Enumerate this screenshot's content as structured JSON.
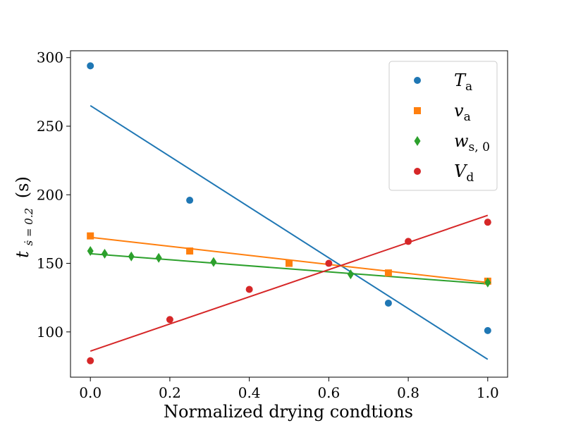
{
  "chart_data": {
    "type": "scatter",
    "title": "",
    "xlabel": "Normalized drying condtions",
    "ylabel": {
      "main": "t",
      "subscript": "ṡ = 0.2",
      "unit": "(s)"
    },
    "xlim": [
      -0.05,
      1.05
    ],
    "ylim": [
      67,
      305
    ],
    "xticks": [
      0.0,
      0.2,
      0.4,
      0.6,
      0.8,
      1.0
    ],
    "xtick_labels": [
      "0.0",
      "0.2",
      "0.4",
      "0.6",
      "0.8",
      "1.0"
    ],
    "yticks": [
      100,
      150,
      200,
      250,
      300
    ],
    "ytick_labels": [
      "100",
      "150",
      "200",
      "250",
      "300"
    ],
    "grid": false,
    "legend_position": "top-right",
    "series": [
      {
        "name": "T",
        "name_sub": "a",
        "color": "#1f77b4",
        "marker": "circle",
        "x": [
          0.0,
          0.25,
          0.75,
          1.0
        ],
        "y": [
          294,
          196,
          121,
          101
        ],
        "fit": {
          "x": [
            0.0,
            1.0
          ],
          "y": [
            265,
            80
          ]
        }
      },
      {
        "name": "v",
        "name_sub": "a",
        "color": "#ff7f0e",
        "marker": "square",
        "x": [
          0.0,
          0.25,
          0.5,
          0.75,
          1.0
        ],
        "y": [
          170,
          159,
          150,
          143,
          137
        ],
        "fit": {
          "x": [
            0.0,
            1.0
          ],
          "y": [
            169,
            136
          ]
        }
      },
      {
        "name": "w",
        "name_sub": "s, 0",
        "color": "#2ca02c",
        "marker": "diamond",
        "x": [
          0.0,
          0.036,
          0.103,
          0.172,
          0.31,
          0.655,
          1.0
        ],
        "y": [
          159,
          157,
          155,
          154,
          151,
          142,
          136
        ],
        "fit": {
          "x": [
            0.0,
            1.0
          ],
          "y": [
            157,
            135
          ]
        }
      },
      {
        "name": "V",
        "name_sub": "d",
        "color": "#d62728",
        "marker": "circle",
        "x": [
          0.0,
          0.2,
          0.4,
          0.6,
          0.8,
          1.0
        ],
        "y": [
          79,
          109,
          131,
          150,
          166,
          180
        ],
        "fit": {
          "x": [
            0.0,
            1.0
          ],
          "y": [
            86,
            185
          ]
        }
      }
    ]
  }
}
